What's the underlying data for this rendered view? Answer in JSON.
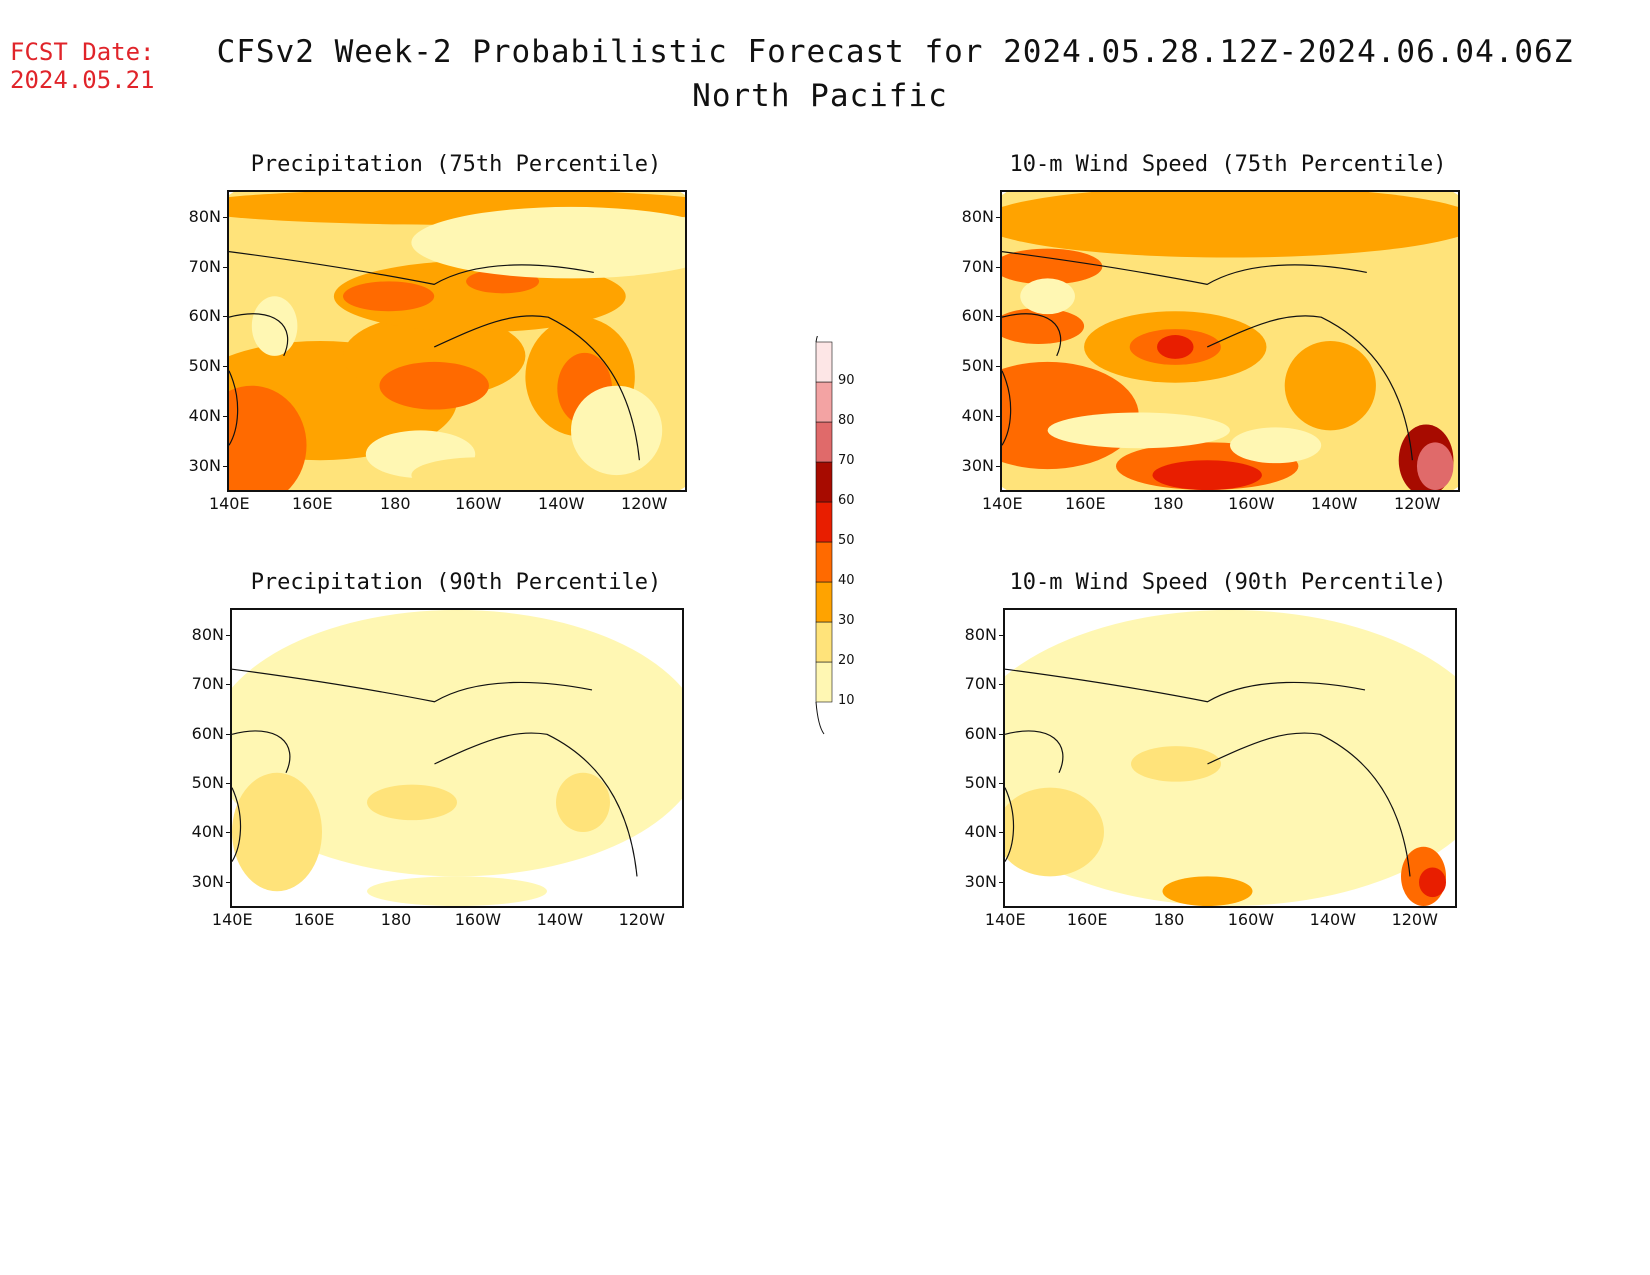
{
  "header": {
    "fcst_label": "FCST Date:",
    "fcst_date": "2024.05.21",
    "title": "CFSv2 Week-2 Probabilistic Forecast for 2024.05.28.12Z-2024.06.04.06Z",
    "subtitle": "North Pacific"
  },
  "axes": {
    "lat_labels": [
      "80N",
      "70N",
      "60N",
      "50N",
      "40N",
      "30N"
    ],
    "lon_labels": [
      "140E",
      "160E",
      "180",
      "160W",
      "140W",
      "120W"
    ]
  },
  "panels": [
    {
      "title": "Precipitation (75th Percentile)",
      "variable": "precipitation",
      "percentile": 75
    },
    {
      "title": "10-m Wind Speed (75th Percentile)",
      "variable": "wind",
      "percentile": 75
    },
    {
      "title": "Precipitation (90th Percentile)",
      "variable": "precipitation",
      "percentile": 90
    },
    {
      "title": "10-m Wind Speed (90th Percentile)",
      "variable": "wind",
      "percentile": 90
    }
  ],
  "legend": {
    "levels": [
      "10",
      "20",
      "30",
      "40",
      "50",
      "60",
      "70",
      "80",
      "90"
    ],
    "colors": [
      "#fff7b3",
      "#ffe37a",
      "#ffa300",
      "#ff6a00",
      "#e81e00",
      "#a70b00",
      "#e06a6a",
      "#f3a3a3",
      "#fde6e6"
    ]
  }
}
